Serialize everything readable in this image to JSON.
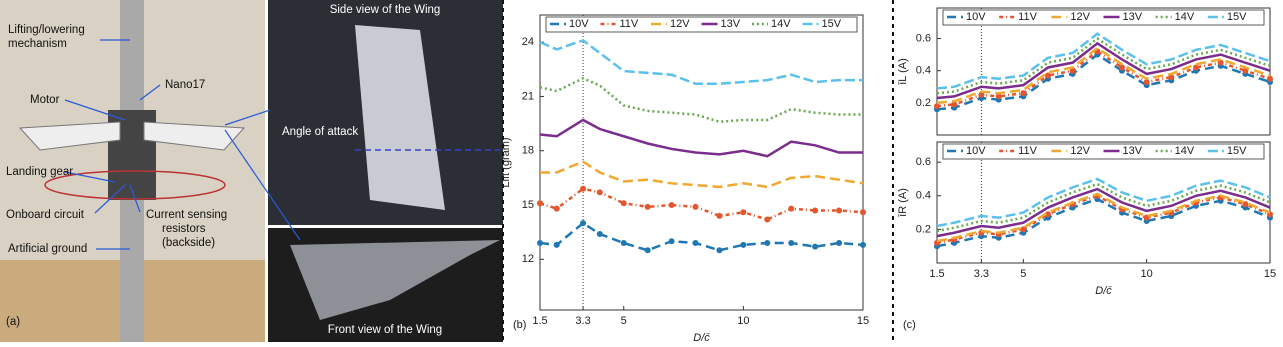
{
  "photo": {
    "lifting": "Lifting/lowering",
    "mechanism": "mechanism",
    "nano17": "Nano17",
    "motor": "Motor",
    "landing_gear": "Landing gear",
    "onboard_circuit": "Onboard circuit",
    "current_sensing": "Current sensing",
    "resistors": "resistors",
    "backside": "(backside)",
    "artificial_ground": "Artificial ground",
    "side_view": "Side view of the Wing",
    "angle_of_attack": "Angle of attack",
    "front_view": "Front view of the Wing",
    "label": "(a)"
  },
  "chart_data": [
    {
      "type": "line",
      "label": "(b)",
      "ylabel": "Lift (gram)",
      "xlabel": "D/c̄",
      "xlim": [
        1.5,
        15
      ],
      "xticks": [
        1.5,
        3.3,
        5,
        10,
        15
      ],
      "ylim": [
        9.2,
        25.5
      ],
      "yticks": [
        12,
        15,
        18,
        21,
        24
      ],
      "vline": 3.3,
      "x": [
        1.5,
        2.2,
        3.3,
        4,
        5,
        6,
        7,
        8,
        9,
        10,
        11,
        12,
        13,
        14,
        15
      ],
      "series": [
        {
          "name": "10V",
          "color": "#1f77b4",
          "marker": "o",
          "values": [
            12.9,
            12.8,
            14.0,
            13.4,
            12.9,
            12.5,
            13.0,
            12.9,
            12.5,
            12.8,
            12.9,
            12.9,
            12.7,
            12.9,
            12.8
          ]
        },
        {
          "name": "11V",
          "color": "#e4572e",
          "marker": "o",
          "values": [
            15.1,
            14.8,
            15.9,
            15.7,
            15.1,
            14.9,
            15.0,
            14.9,
            14.4,
            14.6,
            14.2,
            14.8,
            14.7,
            14.7,
            14.6
          ]
        },
        {
          "name": "12V",
          "color": "#f0a830",
          "values": [
            16.8,
            16.8,
            17.4,
            16.8,
            16.3,
            16.4,
            16.2,
            16.1,
            16.0,
            16.2,
            16.0,
            16.5,
            16.6,
            16.4,
            16.2
          ]
        },
        {
          "name": "13V",
          "color": "#7b2d8e",
          "values": [
            18.9,
            18.8,
            19.7,
            19.2,
            18.8,
            18.4,
            18.1,
            17.9,
            17.8,
            18.0,
            17.7,
            18.5,
            18.3,
            17.9,
            17.9
          ]
        },
        {
          "name": "14V",
          "color": "#6aa84f",
          "values": [
            21.5,
            21.3,
            22.0,
            21.6,
            20.5,
            20.2,
            20.1,
            20.0,
            19.6,
            19.7,
            19.7,
            20.3,
            20.1,
            20.0,
            20.0
          ]
        },
        {
          "name": "15V",
          "color": "#5bc0eb",
          "values": [
            24.0,
            23.6,
            24.1,
            23.4,
            22.4,
            22.3,
            22.2,
            21.7,
            21.7,
            21.8,
            21.9,
            22.2,
            21.8,
            21.9,
            21.9
          ]
        }
      ]
    },
    {
      "type": "line",
      "label": "(c)",
      "ylabel": "īL (A)",
      "xlim": [
        1.5,
        15
      ],
      "ylim": [
        0,
        0.79
      ],
      "yticks": [
        0.2,
        0.4,
        0.6
      ],
      "vline": 3.3,
      "x": [
        1.5,
        2.2,
        3.3,
        4,
        5,
        6,
        7,
        8,
        9,
        10,
        11,
        12,
        13,
        14,
        15
      ],
      "series": [
        {
          "name": "10V",
          "color": "#1f77b4",
          "marker": "o",
          "values": [
            0.16,
            0.17,
            0.23,
            0.22,
            0.24,
            0.35,
            0.38,
            0.5,
            0.4,
            0.31,
            0.34,
            0.4,
            0.43,
            0.38,
            0.33
          ]
        },
        {
          "name": "11V",
          "color": "#e4572e",
          "marker": "o",
          "values": [
            0.18,
            0.19,
            0.25,
            0.24,
            0.26,
            0.37,
            0.4,
            0.52,
            0.42,
            0.33,
            0.36,
            0.42,
            0.45,
            0.4,
            0.35
          ]
        },
        {
          "name": "12V",
          "color": "#f0a830",
          "values": [
            0.2,
            0.21,
            0.27,
            0.26,
            0.28,
            0.39,
            0.42,
            0.54,
            0.44,
            0.35,
            0.38,
            0.44,
            0.47,
            0.42,
            0.37
          ]
        },
        {
          "name": "13V",
          "color": "#7b2d8e",
          "values": [
            0.23,
            0.24,
            0.3,
            0.29,
            0.31,
            0.42,
            0.45,
            0.57,
            0.47,
            0.38,
            0.41,
            0.47,
            0.5,
            0.45,
            0.4
          ]
        },
        {
          "name": "14V",
          "color": "#6aa84f",
          "values": [
            0.26,
            0.27,
            0.33,
            0.32,
            0.34,
            0.45,
            0.48,
            0.6,
            0.5,
            0.41,
            0.44,
            0.5,
            0.53,
            0.48,
            0.43
          ]
        },
        {
          "name": "15V",
          "color": "#5bc0eb",
          "values": [
            0.29,
            0.3,
            0.36,
            0.35,
            0.37,
            0.48,
            0.51,
            0.63,
            0.53,
            0.44,
            0.47,
            0.53,
            0.56,
            0.51,
            0.46
          ]
        }
      ]
    },
    {
      "type": "line",
      "ylabel": "īR (A)",
      "xlabel": "D/c̄",
      "xlim": [
        1.5,
        15
      ],
      "xticks": [
        1.5,
        3.3,
        5,
        10,
        15
      ],
      "ylim": [
        0,
        0.72
      ],
      "yticks": [
        0.2,
        0.4,
        0.6
      ],
      "vline": 3.3,
      "x": [
        1.5,
        2.2,
        3.3,
        4,
        5,
        6,
        7,
        8,
        9,
        10,
        11,
        12,
        13,
        14,
        15
      ],
      "series": [
        {
          "name": "10V",
          "color": "#1f77b4",
          "marker": "o",
          "values": [
            0.1,
            0.12,
            0.16,
            0.15,
            0.18,
            0.27,
            0.33,
            0.38,
            0.3,
            0.25,
            0.28,
            0.34,
            0.37,
            0.33,
            0.27
          ]
        },
        {
          "name": "11V",
          "color": "#e4572e",
          "marker": "o",
          "values": [
            0.12,
            0.14,
            0.18,
            0.17,
            0.2,
            0.29,
            0.35,
            0.4,
            0.32,
            0.27,
            0.3,
            0.36,
            0.39,
            0.35,
            0.29
          ]
        },
        {
          "name": "12V",
          "color": "#f0a830",
          "values": [
            0.13,
            0.15,
            0.19,
            0.18,
            0.21,
            0.3,
            0.36,
            0.41,
            0.33,
            0.28,
            0.31,
            0.37,
            0.4,
            0.36,
            0.3
          ]
        },
        {
          "name": "13V",
          "color": "#7b2d8e",
          "values": [
            0.16,
            0.18,
            0.22,
            0.21,
            0.24,
            0.33,
            0.39,
            0.44,
            0.36,
            0.31,
            0.34,
            0.4,
            0.43,
            0.39,
            0.33
          ]
        },
        {
          "name": "14V",
          "color": "#6aa84f",
          "values": [
            0.19,
            0.21,
            0.25,
            0.24,
            0.27,
            0.36,
            0.42,
            0.47,
            0.39,
            0.34,
            0.37,
            0.43,
            0.46,
            0.42,
            0.36
          ]
        },
        {
          "name": "15V",
          "color": "#5bc0eb",
          "values": [
            0.22,
            0.24,
            0.28,
            0.27,
            0.3,
            0.39,
            0.45,
            0.5,
            0.42,
            0.37,
            0.4,
            0.46,
            0.49,
            0.45,
            0.39
          ]
        }
      ]
    }
  ]
}
